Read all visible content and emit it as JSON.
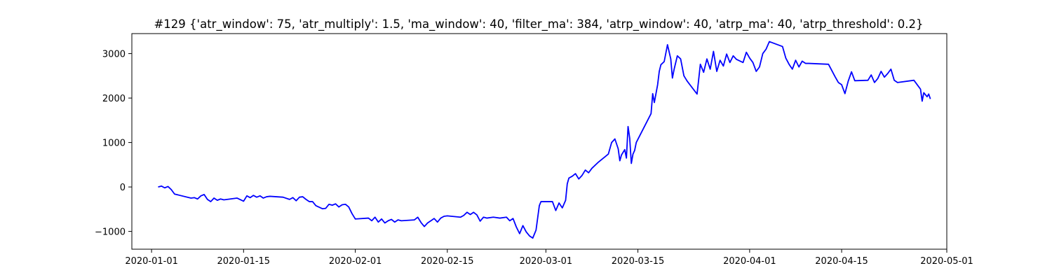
{
  "chart_data": {
    "type": "line",
    "title": "#129 {'atr_window': 75, 'atr_multiply': 1.5, 'ma_window': 40, 'filter_ma': 384, 'atrp_window': 40, 'atrp_ma': 40, 'atrp_threshold': 0.2}",
    "xlabel": "",
    "ylabel": "",
    "xlim": [
      "2019-12-29",
      "2020-05-01"
    ],
    "ylim": [
      -1400,
      3450
    ],
    "x_ticks": [
      "2020-01-01",
      "2020-01-15",
      "2020-02-01",
      "2020-02-15",
      "2020-03-01",
      "2020-03-15",
      "2020-04-01",
      "2020-04-15",
      "2020-05-01"
    ],
    "y_ticks": [
      -1000,
      0,
      1000,
      2000,
      3000
    ],
    "grid": false,
    "series": [
      {
        "color": "#0000ff",
        "points": [
          [
            "2020-01-02",
            0
          ],
          [
            "2020-01-02 12:00",
            20
          ],
          [
            "2020-01-03",
            -20
          ],
          [
            "2020-01-03 12:00",
            10
          ],
          [
            "2020-01-04",
            -60
          ],
          [
            "2020-01-04 12:00",
            -160
          ],
          [
            "2020-01-07",
            -250
          ],
          [
            "2020-01-07 12:00",
            -240
          ],
          [
            "2020-01-08",
            -270
          ],
          [
            "2020-01-08 12:00",
            -200
          ],
          [
            "2020-01-09",
            -170
          ],
          [
            "2020-01-09 12:00",
            -280
          ],
          [
            "2020-01-10",
            -330
          ],
          [
            "2020-01-10 12:00",
            -250
          ],
          [
            "2020-01-11",
            -300
          ],
          [
            "2020-01-11 12:00",
            -270
          ],
          [
            "2020-01-12",
            -290
          ],
          [
            "2020-01-14",
            -250
          ],
          [
            "2020-01-15",
            -320
          ],
          [
            "2020-01-15 12:00",
            -200
          ],
          [
            "2020-01-16",
            -240
          ],
          [
            "2020-01-16 12:00",
            -190
          ],
          [
            "2020-01-17",
            -230
          ],
          [
            "2020-01-17 12:00",
            -200
          ],
          [
            "2020-01-18",
            -250
          ],
          [
            "2020-01-18 12:00",
            -220
          ],
          [
            "2020-01-19",
            -210
          ],
          [
            "2020-01-21",
            -230
          ],
          [
            "2020-01-22",
            -280
          ],
          [
            "2020-01-22 12:00",
            -240
          ],
          [
            "2020-01-23",
            -310
          ],
          [
            "2020-01-23 12:00",
            -230
          ],
          [
            "2020-01-24",
            -220
          ],
          [
            "2020-01-24 12:00",
            -280
          ],
          [
            "2020-01-25",
            -330
          ],
          [
            "2020-01-25 12:00",
            -330
          ],
          [
            "2020-01-26",
            -420
          ],
          [
            "2020-01-27",
            -490
          ],
          [
            "2020-01-27 12:00",
            -480
          ],
          [
            "2020-01-28",
            -390
          ],
          [
            "2020-01-28 12:00",
            -410
          ],
          [
            "2020-01-29",
            -380
          ],
          [
            "2020-01-29 12:00",
            -450
          ],
          [
            "2020-01-30",
            -400
          ],
          [
            "2020-01-30 12:00",
            -390
          ],
          [
            "2020-01-31",
            -450
          ],
          [
            "2020-01-31 12:00",
            -600
          ],
          [
            "2020-02-01",
            -720
          ],
          [
            "2020-02-03",
            -700
          ],
          [
            "2020-02-03 12:00",
            -760
          ],
          [
            "2020-02-04",
            -680
          ],
          [
            "2020-02-04 12:00",
            -790
          ],
          [
            "2020-02-05",
            -720
          ],
          [
            "2020-02-05 12:00",
            -810
          ],
          [
            "2020-02-06",
            -760
          ],
          [
            "2020-02-06 12:00",
            -730
          ],
          [
            "2020-02-07",
            -790
          ],
          [
            "2020-02-07 12:00",
            -740
          ],
          [
            "2020-02-08",
            -760
          ],
          [
            "2020-02-10",
            -740
          ],
          [
            "2020-02-10 12:00",
            -680
          ],
          [
            "2020-02-11",
            -800
          ],
          [
            "2020-02-11 12:00",
            -890
          ],
          [
            "2020-02-12",
            -810
          ],
          [
            "2020-02-12 12:00",
            -760
          ],
          [
            "2020-02-13",
            -710
          ],
          [
            "2020-02-13 12:00",
            -790
          ],
          [
            "2020-02-14",
            -700
          ],
          [
            "2020-02-14 12:00",
            -660
          ],
          [
            "2020-02-15",
            -650
          ],
          [
            "2020-02-17",
            -680
          ],
          [
            "2020-02-17 12:00",
            -640
          ],
          [
            "2020-02-18",
            -570
          ],
          [
            "2020-02-18 12:00",
            -620
          ],
          [
            "2020-02-19",
            -570
          ],
          [
            "2020-02-19 12:00",
            -630
          ],
          [
            "2020-02-20",
            -770
          ],
          [
            "2020-02-20 12:00",
            -680
          ],
          [
            "2020-02-21",
            -700
          ],
          [
            "2020-02-22",
            -680
          ],
          [
            "2020-02-23",
            -700
          ],
          [
            "2020-02-24",
            -680
          ],
          [
            "2020-02-24 12:00",
            -760
          ],
          [
            "2020-02-25",
            -710
          ],
          [
            "2020-02-25 12:00",
            -900
          ],
          [
            "2020-02-26",
            -1050
          ],
          [
            "2020-02-26 12:00",
            -870
          ],
          [
            "2020-02-27",
            -1010
          ],
          [
            "2020-02-27 12:00",
            -1100
          ],
          [
            "2020-02-28",
            -1150
          ],
          [
            "2020-02-28 12:00",
            -970
          ],
          [
            "2020-02-29",
            -420
          ],
          [
            "2020-02-29 06:00",
            -330
          ],
          [
            "2020-03-02",
            -330
          ],
          [
            "2020-03-02 12:00",
            -530
          ],
          [
            "2020-03-03",
            -360
          ],
          [
            "2020-03-03 12:00",
            -470
          ],
          [
            "2020-03-04",
            -300
          ],
          [
            "2020-03-04 06:00",
            70
          ],
          [
            "2020-03-04 12:00",
            200
          ],
          [
            "2020-03-05",
            240
          ],
          [
            "2020-03-05 12:00",
            300
          ],
          [
            "2020-03-06",
            180
          ],
          [
            "2020-03-06 12:00",
            260
          ],
          [
            "2020-03-07",
            380
          ],
          [
            "2020-03-07 12:00",
            320
          ],
          [
            "2020-03-08",
            420
          ],
          [
            "2020-03-09",
            560
          ],
          [
            "2020-03-10",
            680
          ],
          [
            "2020-03-10 12:00",
            740
          ],
          [
            "2020-03-11",
            1000
          ],
          [
            "2020-03-11 12:00",
            1080
          ],
          [
            "2020-03-12",
            860
          ],
          [
            "2020-03-12 06:00",
            590
          ],
          [
            "2020-03-12 12:00",
            720
          ],
          [
            "2020-03-13",
            840
          ],
          [
            "2020-03-13 06:00",
            650
          ],
          [
            "2020-03-13 12:00",
            1360
          ],
          [
            "2020-03-13 18:00",
            1100
          ],
          [
            "2020-03-14",
            530
          ],
          [
            "2020-03-14 06:00",
            740
          ],
          [
            "2020-03-14 12:00",
            820
          ],
          [
            "2020-03-14 18:00",
            1000
          ],
          [
            "2020-03-17",
            1650
          ],
          [
            "2020-03-17 06:00",
            2100
          ],
          [
            "2020-03-17 12:00",
            1900
          ],
          [
            "2020-03-18",
            2300
          ],
          [
            "2020-03-18 06:00",
            2600
          ],
          [
            "2020-03-18 12:00",
            2750
          ],
          [
            "2020-03-19",
            2820
          ],
          [
            "2020-03-19 12:00",
            3200
          ],
          [
            "2020-03-20",
            2880
          ],
          [
            "2020-03-20 06:00",
            2450
          ],
          [
            "2020-03-20 12:00",
            2640
          ],
          [
            "2020-03-21",
            2950
          ],
          [
            "2020-03-21 12:00",
            2880
          ],
          [
            "2020-03-22",
            2500
          ],
          [
            "2020-03-22 12:00",
            2380
          ],
          [
            "2020-03-24",
            2090
          ],
          [
            "2020-03-24 06:00",
            2420
          ],
          [
            "2020-03-24 12:00",
            2760
          ],
          [
            "2020-03-25",
            2580
          ],
          [
            "2020-03-25 12:00",
            2880
          ],
          [
            "2020-03-26",
            2650
          ],
          [
            "2020-03-26 12:00",
            3050
          ],
          [
            "2020-03-27",
            2600
          ],
          [
            "2020-03-27 12:00",
            2850
          ],
          [
            "2020-03-28",
            2720
          ],
          [
            "2020-03-28 12:00",
            2990
          ],
          [
            "2020-03-29",
            2800
          ],
          [
            "2020-03-29 12:00",
            2950
          ],
          [
            "2020-03-30",
            2870
          ],
          [
            "2020-03-31",
            2800
          ],
          [
            "2020-03-31 12:00",
            3030
          ],
          [
            "2020-04-01",
            2900
          ],
          [
            "2020-04-01 12:00",
            2800
          ],
          [
            "2020-04-02",
            2600
          ],
          [
            "2020-04-02 12:00",
            2700
          ],
          [
            "2020-04-03",
            3000
          ],
          [
            "2020-04-03 12:00",
            3100
          ],
          [
            "2020-04-04",
            3270
          ],
          [
            "2020-04-06",
            3160
          ],
          [
            "2020-04-06 12:00",
            2900
          ],
          [
            "2020-04-07",
            2760
          ],
          [
            "2020-04-07 12:00",
            2650
          ],
          [
            "2020-04-08",
            2850
          ],
          [
            "2020-04-08 12:00",
            2700
          ],
          [
            "2020-04-09",
            2830
          ],
          [
            "2020-04-09 12:00",
            2780
          ],
          [
            "2020-04-10",
            2780
          ],
          [
            "2020-04-13",
            2760
          ],
          [
            "2020-04-13 12:00",
            2620
          ],
          [
            "2020-04-14",
            2480
          ],
          [
            "2020-04-14 12:00",
            2350
          ],
          [
            "2020-04-15",
            2300
          ],
          [
            "2020-04-15 12:00",
            2100
          ],
          [
            "2020-04-16",
            2380
          ],
          [
            "2020-04-16 12:00",
            2590
          ],
          [
            "2020-04-17",
            2390
          ],
          [
            "2020-04-19",
            2400
          ],
          [
            "2020-04-19 12:00",
            2520
          ],
          [
            "2020-04-20",
            2350
          ],
          [
            "2020-04-20 12:00",
            2440
          ],
          [
            "2020-04-21",
            2600
          ],
          [
            "2020-04-21 12:00",
            2470
          ],
          [
            "2020-04-22",
            2550
          ],
          [
            "2020-04-22 12:00",
            2650
          ],
          [
            "2020-04-23",
            2400
          ],
          [
            "2020-04-23 12:00",
            2350
          ],
          [
            "2020-04-26",
            2400
          ],
          [
            "2020-04-26 12:00",
            2300
          ],
          [
            "2020-04-27",
            2200
          ],
          [
            "2020-04-27 06:00",
            1930
          ],
          [
            "2020-04-27 12:00",
            2120
          ],
          [
            "2020-04-28",
            2030
          ],
          [
            "2020-04-28 06:00",
            2090
          ],
          [
            "2020-04-28 12:00",
            1980
          ]
        ]
      }
    ]
  }
}
